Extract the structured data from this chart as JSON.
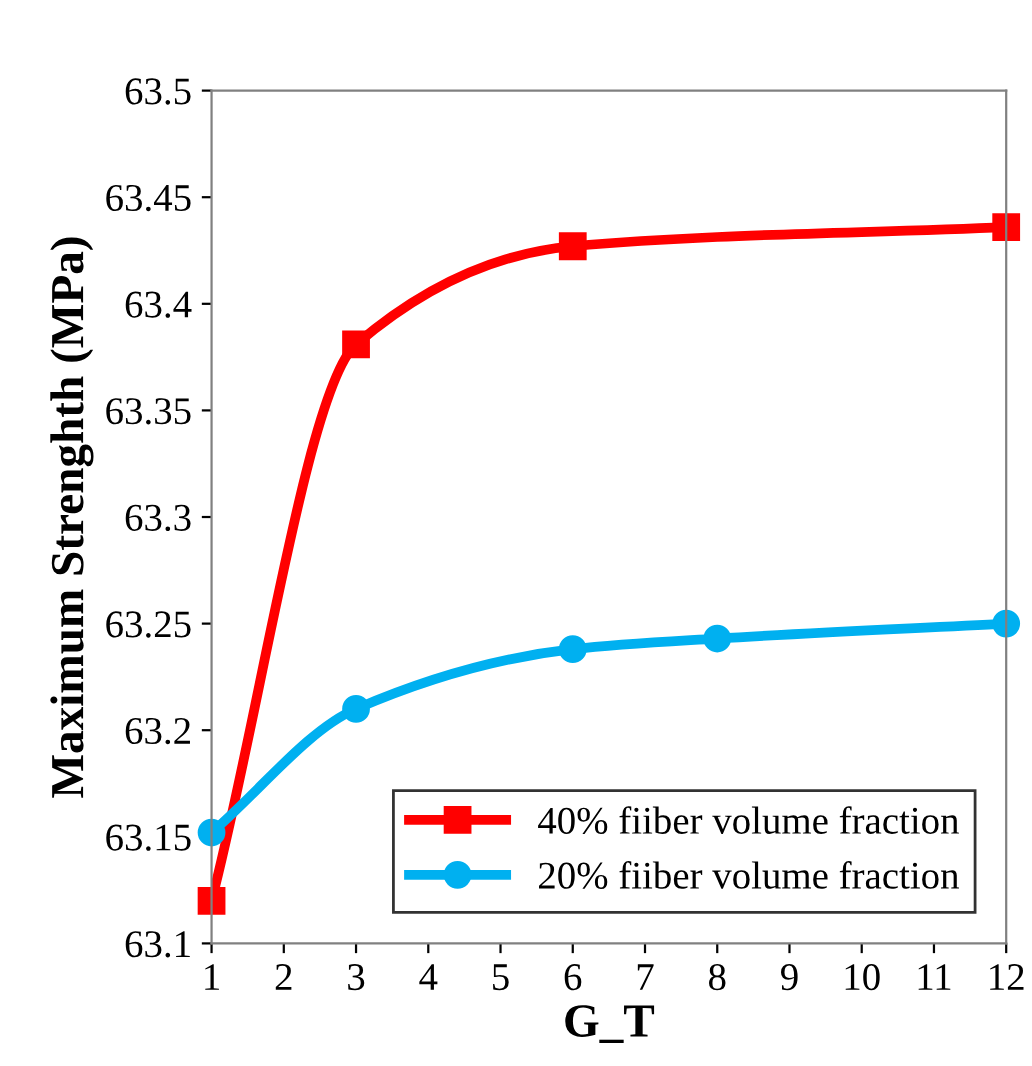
{
  "chart_data": {
    "type": "line",
    "xlabel": "G_T",
    "ylabel": "Maximum Strenghth (MPa)",
    "series": [
      {
        "name": "40% fiiber volume fraction",
        "color": "#ff0000",
        "marker": "square",
        "x": [
          1,
          3,
          6,
          12
        ],
        "values": [
          63.12,
          63.381,
          63.427,
          63.436
        ]
      },
      {
        "name": "20% fiiber volume fraction",
        "color": "#00b0f0",
        "marker": "circle",
        "x": [
          1,
          3,
          6,
          8,
          12
        ],
        "values": [
          63.152,
          63.21,
          63.238,
          63.243,
          63.25
        ]
      }
    ],
    "xlim": [
      1,
      12
    ],
    "xticks": [
      1,
      2,
      3,
      4,
      5,
      6,
      7,
      8,
      9,
      10,
      11,
      12
    ],
    "ylim": [
      63.1,
      63.5
    ],
    "yticks": [
      {
        "value": 63.1,
        "label": "63.1"
      },
      {
        "value": 63.15,
        "label": "63.15"
      },
      {
        "value": 63.2,
        "label": "63.2"
      },
      {
        "value": 63.25,
        "label": "63.25"
      },
      {
        "value": 63.3,
        "label": "63.3"
      },
      {
        "value": 63.35,
        "label": "63.35"
      },
      {
        "value": 63.4,
        "label": "63.4"
      },
      {
        "value": 63.45,
        "label": "63.45"
      },
      {
        "value": 63.5,
        "label": "63.5"
      }
    ],
    "grid": false,
    "legend": "bottom right",
    "line_style": "solid"
  }
}
